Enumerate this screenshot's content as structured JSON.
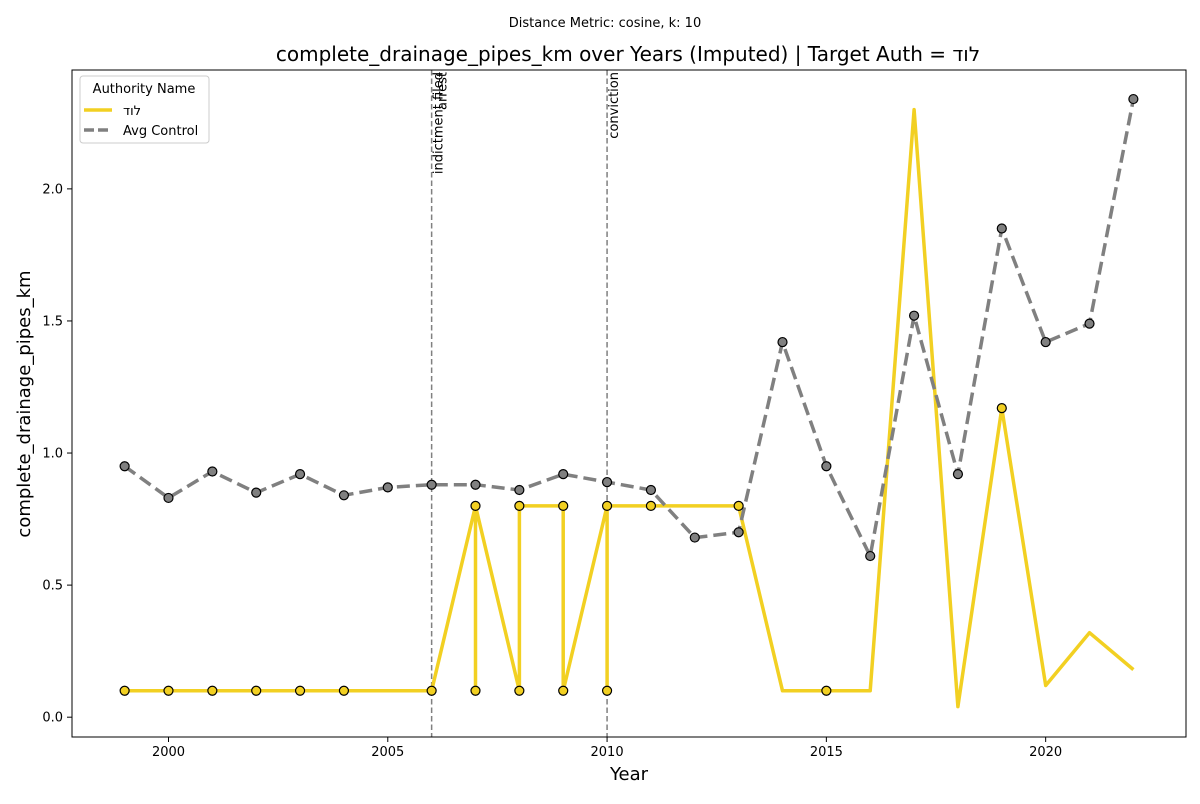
{
  "chart_data": {
    "type": "line",
    "suptitle": "Distance Metric: cosine, k: 10",
    "title": "complete_drainage_pipes_km over Years (Imputed) | Target Auth = לוד",
    "xlabel": "Year",
    "ylabel": "complete_drainage_pipes_km",
    "xlim": [
      1997.8,
      2023.2
    ],
    "ylim": [
      -0.075,
      2.45
    ],
    "xticks": [
      2000,
      2005,
      2010,
      2015,
      2020
    ],
    "yticks": [
      0.0,
      0.5,
      1.0,
      1.5,
      2.0
    ],
    "grid": false,
    "legend": {
      "title": "Authority Name",
      "placement": "top-left",
      "entries": [
        "לוד",
        "Avg Control"
      ]
    },
    "events": [
      {
        "x": 2006,
        "labels": [
          "indictment filed",
          "arrest"
        ]
      },
      {
        "x": 2010,
        "labels": [
          "conviction"
        ]
      }
    ],
    "series": [
      {
        "name": "לוד",
        "color": "#f2d022",
        "style": "solid",
        "points": [
          [
            1999,
            0.1
          ],
          [
            2000,
            0.1
          ],
          [
            2001,
            0.1
          ],
          [
            2002,
            0.1
          ],
          [
            2003,
            0.1
          ],
          [
            2004,
            0.1
          ],
          [
            2006,
            0.1
          ],
          [
            2007,
            0.8
          ],
          [
            2007,
            0.1
          ],
          [
            2007,
            0.8
          ],
          [
            2008,
            0.1
          ],
          [
            2008,
            0.8
          ],
          [
            2009,
            0.8
          ],
          [
            2009,
            0.1
          ],
          [
            2010,
            0.8
          ],
          [
            2010,
            0.1
          ],
          [
            2010,
            0.8
          ],
          [
            2011,
            0.8
          ],
          [
            2013,
            0.8
          ],
          [
            2014,
            0.1
          ],
          [
            2015,
            0.1
          ],
          [
            2016,
            0.1
          ],
          [
            2017,
            2.3
          ],
          [
            2018,
            0.04
          ],
          [
            2019,
            1.17
          ],
          [
            2020,
            0.12
          ],
          [
            2021,
            0.32
          ],
          [
            2022,
            0.18
          ]
        ],
        "markers": [
          [
            1999,
            0.1
          ],
          [
            2000,
            0.1
          ],
          [
            2001,
            0.1
          ],
          [
            2002,
            0.1
          ],
          [
            2003,
            0.1
          ],
          [
            2004,
            0.1
          ],
          [
            2006,
            0.1
          ],
          [
            2007,
            0.8
          ],
          [
            2007,
            0.1
          ],
          [
            2008,
            0.8
          ],
          [
            2008,
            0.1
          ],
          [
            2009,
            0.8
          ],
          [
            2009,
            0.1
          ],
          [
            2010,
            0.8
          ],
          [
            2010,
            0.1
          ],
          [
            2011,
            0.8
          ],
          [
            2013,
            0.8
          ],
          [
            2015,
            0.1
          ],
          [
            2019,
            1.17
          ]
        ]
      },
      {
        "name": "Avg Control",
        "color": "#808080",
        "style": "dashed",
        "points": [
          [
            1999,
            0.95
          ],
          [
            2000,
            0.83
          ],
          [
            2001,
            0.93
          ],
          [
            2002,
            0.85
          ],
          [
            2003,
            0.92
          ],
          [
            2004,
            0.84
          ],
          [
            2005,
            0.87
          ],
          [
            2006,
            0.88
          ],
          [
            2007,
            0.88
          ],
          [
            2008,
            0.86
          ],
          [
            2009,
            0.92
          ],
          [
            2010,
            0.89
          ],
          [
            2011,
            0.86
          ],
          [
            2012,
            0.68
          ],
          [
            2013,
            0.7
          ],
          [
            2014,
            1.42
          ],
          [
            2015,
            0.95
          ],
          [
            2016,
            0.61
          ],
          [
            2017,
            1.52
          ],
          [
            2018,
            0.92
          ],
          [
            2019,
            1.85
          ],
          [
            2020,
            1.42
          ],
          [
            2021,
            1.49
          ],
          [
            2022,
            2.34
          ]
        ],
        "markers": [
          [
            1999,
            0.95
          ],
          [
            2000,
            0.83
          ],
          [
            2001,
            0.93
          ],
          [
            2002,
            0.85
          ],
          [
            2003,
            0.92
          ],
          [
            2004,
            0.84
          ],
          [
            2005,
            0.87
          ],
          [
            2006,
            0.88
          ],
          [
            2007,
            0.88
          ],
          [
            2008,
            0.86
          ],
          [
            2009,
            0.92
          ],
          [
            2010,
            0.89
          ],
          [
            2011,
            0.86
          ],
          [
            2012,
            0.68
          ],
          [
            2013,
            0.7
          ],
          [
            2014,
            1.42
          ],
          [
            2015,
            0.95
          ],
          [
            2016,
            0.61
          ],
          [
            2017,
            1.52
          ],
          [
            2018,
            0.92
          ],
          [
            2019,
            1.85
          ],
          [
            2020,
            1.42
          ],
          [
            2021,
            1.49
          ],
          [
            2022,
            2.34
          ]
        ]
      }
    ]
  }
}
